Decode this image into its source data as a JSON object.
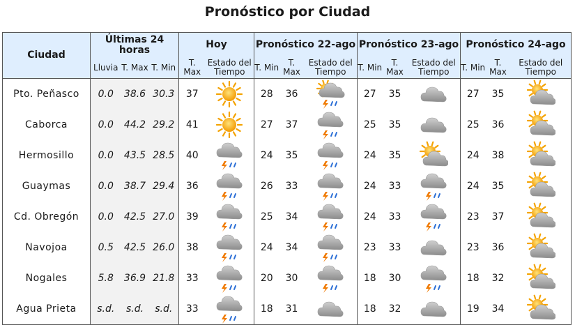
{
  "title": "Pronóstico por Ciudad",
  "headers": {
    "city": "Ciudad",
    "last24": "Últimas 24 horas",
    "today": "Hoy",
    "f1": "Pronóstico 22-ago",
    "f2": "Pronóstico 23-ago",
    "f3": "Pronóstico 24-ago",
    "lluvia": "Lluvia",
    "tmax": "T. Max",
    "tmin": "T. Min",
    "estado": "Estado del Tiempo"
  },
  "rows": [
    {
      "city": "Pto. Peñasco",
      "lluvia": "0.0",
      "tmax24": "38.6",
      "tmin24": "30.3",
      "hoy_max": "37",
      "hoy_icon": "sunny-icon",
      "f1_min": "28",
      "f1_max": "36",
      "f1_icon": "sun-thunderstorm-icon",
      "f2_min": "27",
      "f2_max": "35",
      "f2_icon": "cloud-icon",
      "f3_min": "27",
      "f3_max": "35",
      "f3_icon": "partly-cloudy-icon"
    },
    {
      "city": "Caborca",
      "lluvia": "0.0",
      "tmax24": "44.2",
      "tmin24": "29.2",
      "hoy_max": "41",
      "hoy_icon": "sunny-icon",
      "f1_min": "27",
      "f1_max": "37",
      "f1_icon": "thunderstorm-icon",
      "f2_min": "25",
      "f2_max": "35",
      "f2_icon": "cloud-icon",
      "f3_min": "25",
      "f3_max": "36",
      "f3_icon": "partly-cloudy-icon"
    },
    {
      "city": "Hermosillo",
      "lluvia": "0.0",
      "tmax24": "43.5",
      "tmin24": "28.5",
      "hoy_max": "40",
      "hoy_icon": "thunderstorm-icon",
      "f1_min": "24",
      "f1_max": "35",
      "f1_icon": "thunderstorm-icon",
      "f2_min": "24",
      "f2_max": "35",
      "f2_icon": "partly-cloudy-icon",
      "f3_min": "24",
      "f3_max": "38",
      "f3_icon": "partly-cloudy-icon"
    },
    {
      "city": "Guaymas",
      "lluvia": "0.0",
      "tmax24": "38.7",
      "tmin24": "29.4",
      "hoy_max": "36",
      "hoy_icon": "thunderstorm-icon",
      "f1_min": "26",
      "f1_max": "33",
      "f1_icon": "thunderstorm-icon",
      "f2_min": "24",
      "f2_max": "33",
      "f2_icon": "thunderstorm-icon",
      "f3_min": "24",
      "f3_max": "35",
      "f3_icon": "partly-cloudy-icon"
    },
    {
      "city": "Cd. Obregón",
      "lluvia": "0.0",
      "tmax24": "42.5",
      "tmin24": "27.0",
      "hoy_max": "39",
      "hoy_icon": "thunderstorm-icon",
      "f1_min": "25",
      "f1_max": "34",
      "f1_icon": "thunderstorm-icon",
      "f2_min": "24",
      "f2_max": "33",
      "f2_icon": "thunderstorm-icon",
      "f3_min": "23",
      "f3_max": "37",
      "f3_icon": "partly-cloudy-icon"
    },
    {
      "city": "Navojoa",
      "lluvia": "0.5",
      "tmax24": "42.5",
      "tmin24": "26.0",
      "hoy_max": "38",
      "hoy_icon": "thunderstorm-icon",
      "f1_min": "24",
      "f1_max": "34",
      "f1_icon": "thunderstorm-icon",
      "f2_min": "23",
      "f2_max": "33",
      "f2_icon": "cloud-icon",
      "f3_min": "23",
      "f3_max": "36",
      "f3_icon": "partly-cloudy-icon"
    },
    {
      "city": "Nogales",
      "lluvia": "5.8",
      "tmax24": "36.9",
      "tmin24": "21.8",
      "hoy_max": "33",
      "hoy_icon": "thunderstorm-icon",
      "f1_min": "20",
      "f1_max": "30",
      "f1_icon": "thunderstorm-icon",
      "f2_min": "18",
      "f2_max": "30",
      "f2_icon": "thunderstorm-icon",
      "f3_min": "18",
      "f3_max": "32",
      "f3_icon": "partly-cloudy-icon"
    },
    {
      "city": "Agua Prieta",
      "lluvia": "s.d.",
      "tmax24": "s.d.",
      "tmin24": "s.d.",
      "hoy_max": "33",
      "hoy_icon": "thunderstorm-icon",
      "f1_min": "18",
      "f1_max": "31",
      "f1_icon": "cloud-icon",
      "f2_min": "18",
      "f2_max": "32",
      "f2_icon": "cloud-icon",
      "f3_min": "19",
      "f3_max": "34",
      "f3_icon": "partly-cloudy-icon"
    }
  ]
}
